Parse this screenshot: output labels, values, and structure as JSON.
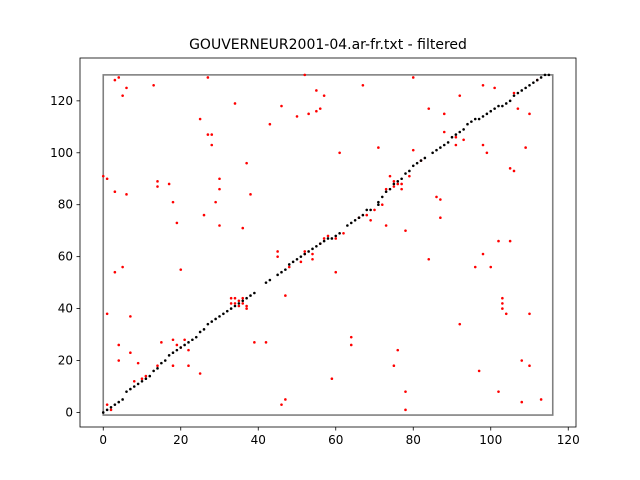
{
  "chart_data": {
    "type": "scatter",
    "title": "GOUVERNEUR2001-04.ar-fr.txt - filtered",
    "xlabel": "",
    "ylabel": "",
    "xlim": [
      -6.0,
      122.0
    ],
    "ylim": [
      -5.6,
      136.5
    ],
    "xticks": [
      0,
      20,
      40,
      60,
      80,
      100,
      120
    ],
    "yticks": [
      0,
      20,
      40,
      60,
      80,
      100,
      120
    ],
    "grid": false,
    "box": {
      "x0": 0,
      "y0": -1,
      "x1": 116,
      "y1": 130,
      "color": "#808080"
    },
    "series": [
      {
        "name": "",
        "color": "#000000",
        "points": [
          [
            0,
            0
          ],
          [
            1,
            1
          ],
          [
            2,
            2
          ],
          [
            3,
            3
          ],
          [
            4,
            4
          ],
          [
            5,
            5
          ],
          [
            6,
            8
          ],
          [
            7,
            9
          ],
          [
            8,
            10
          ],
          [
            9,
            11
          ],
          [
            10,
            12
          ],
          [
            11,
            13
          ],
          [
            12,
            14
          ],
          [
            13,
            16
          ],
          [
            14,
            17
          ],
          [
            15,
            19
          ],
          [
            16,
            20
          ],
          [
            17,
            22
          ],
          [
            18,
            23
          ],
          [
            19,
            24
          ],
          [
            20,
            25
          ],
          [
            21,
            26
          ],
          [
            22,
            27
          ],
          [
            23,
            28
          ],
          [
            24,
            29
          ],
          [
            25,
            31
          ],
          [
            26,
            32
          ],
          [
            27,
            34
          ],
          [
            28,
            35
          ],
          [
            29,
            36
          ],
          [
            30,
            37
          ],
          [
            31,
            38
          ],
          [
            32,
            39
          ],
          [
            33,
            40
          ],
          [
            34,
            41
          ],
          [
            35,
            42
          ],
          [
            36,
            43
          ],
          [
            37,
            44
          ],
          [
            38,
            45
          ],
          [
            39,
            46
          ],
          [
            42,
            50
          ],
          [
            43,
            51
          ],
          [
            45,
            53
          ],
          [
            46,
            54
          ],
          [
            47,
            55
          ],
          [
            48,
            57
          ],
          [
            49,
            58
          ],
          [
            50,
            59
          ],
          [
            51,
            60
          ],
          [
            52,
            61
          ],
          [
            53,
            62
          ],
          [
            54,
            63
          ],
          [
            55,
            64
          ],
          [
            56,
            65
          ],
          [
            57,
            66
          ],
          [
            58,
            67
          ],
          [
            59,
            67
          ],
          [
            60,
            68
          ],
          [
            61,
            69
          ],
          [
            63,
            72
          ],
          [
            64,
            73
          ],
          [
            65,
            74
          ],
          [
            66,
            75
          ],
          [
            67,
            76
          ],
          [
            68,
            78
          ],
          [
            69,
            78
          ],
          [
            71,
            80
          ],
          [
            71,
            81
          ],
          [
            72,
            83
          ],
          [
            73,
            85
          ],
          [
            74,
            86
          ],
          [
            75,
            88
          ],
          [
            76,
            89
          ],
          [
            77,
            90
          ],
          [
            78,
            92
          ],
          [
            79,
            93
          ],
          [
            80,
            95
          ],
          [
            81,
            96
          ],
          [
            82,
            97
          ],
          [
            83,
            98
          ],
          [
            85,
            100
          ],
          [
            86,
            101
          ],
          [
            87,
            102
          ],
          [
            88,
            103
          ],
          [
            89,
            104
          ],
          [
            90,
            106
          ],
          [
            91,
            107
          ],
          [
            92,
            108
          ],
          [
            93,
            109
          ],
          [
            94,
            111
          ],
          [
            95,
            112
          ],
          [
            96,
            113
          ],
          [
            97,
            113
          ],
          [
            98,
            114
          ],
          [
            99,
            115
          ],
          [
            100,
            116
          ],
          [
            101,
            117
          ],
          [
            102,
            118
          ],
          [
            103,
            118
          ],
          [
            104,
            119
          ],
          [
            105,
            120
          ],
          [
            106,
            122
          ],
          [
            107,
            123
          ],
          [
            108,
            124
          ],
          [
            109,
            125
          ],
          [
            110,
            126
          ],
          [
            111,
            127
          ],
          [
            112,
            128
          ],
          [
            113,
            129
          ],
          [
            114,
            130
          ],
          [
            115,
            130
          ]
        ]
      },
      {
        "name": "",
        "color": "#ff0000",
        "points": [
          [
            0,
            91
          ],
          [
            1,
            90
          ],
          [
            1,
            38
          ],
          [
            1,
            3
          ],
          [
            2,
            1
          ],
          [
            3,
            85
          ],
          [
            3,
            128
          ],
          [
            3,
            54
          ],
          [
            4,
            129
          ],
          [
            4,
            26
          ],
          [
            4,
            20
          ],
          [
            5,
            122
          ],
          [
            5,
            56
          ],
          [
            6,
            125
          ],
          [
            6,
            84
          ],
          [
            7,
            37
          ],
          [
            7,
            23
          ],
          [
            8,
            12
          ],
          [
            9,
            19
          ],
          [
            10,
            13
          ],
          [
            11,
            14
          ],
          [
            13,
            126
          ],
          [
            14,
            89
          ],
          [
            14,
            87
          ],
          [
            14,
            18
          ],
          [
            15,
            27
          ],
          [
            17,
            88
          ],
          [
            18,
            81
          ],
          [
            18,
            28
          ],
          [
            18,
            18
          ],
          [
            19,
            73
          ],
          [
            19,
            26
          ],
          [
            20,
            55
          ],
          [
            20,
            25
          ],
          [
            21,
            28
          ],
          [
            22,
            24
          ],
          [
            22,
            18
          ],
          [
            25,
            113
          ],
          [
            25,
            15
          ],
          [
            26,
            76
          ],
          [
            27,
            129
          ],
          [
            27,
            107
          ],
          [
            28,
            107
          ],
          [
            28,
            103
          ],
          [
            29,
            81
          ],
          [
            30,
            90
          ],
          [
            30,
            86
          ],
          [
            30,
            72
          ],
          [
            33,
            44
          ],
          [
            33,
            42
          ],
          [
            34,
            44
          ],
          [
            34,
            42
          ],
          [
            34,
            119
          ],
          [
            35,
            43
          ],
          [
            35,
            41
          ],
          [
            36,
            44
          ],
          [
            36,
            71
          ],
          [
            36,
            42
          ],
          [
            37,
            41
          ],
          [
            37,
            96
          ],
          [
            37,
            40
          ],
          [
            38,
            84
          ],
          [
            39,
            27
          ],
          [
            42,
            27
          ],
          [
            43,
            111
          ],
          [
            45,
            62
          ],
          [
            45,
            60
          ],
          [
            46,
            118
          ],
          [
            46,
            3
          ],
          [
            47,
            45
          ],
          [
            47,
            5
          ],
          [
            48,
            56
          ],
          [
            50,
            114
          ],
          [
            51,
            58
          ],
          [
            52,
            62
          ],
          [
            52,
            61
          ],
          [
            52,
            130
          ],
          [
            53,
            115
          ],
          [
            54,
            61
          ],
          [
            54,
            59
          ],
          [
            55,
            124
          ],
          [
            55,
            116
          ],
          [
            56,
            117
          ],
          [
            56,
            65
          ],
          [
            57,
            122
          ],
          [
            57,
            67
          ],
          [
            58,
            68
          ],
          [
            59,
            13
          ],
          [
            60,
            67
          ],
          [
            60,
            54
          ],
          [
            61,
            100
          ],
          [
            62,
            69
          ],
          [
            64,
            29
          ],
          [
            64,
            26
          ],
          [
            66,
            75
          ],
          [
            67,
            126
          ],
          [
            68,
            76
          ],
          [
            69,
            74
          ],
          [
            70,
            78
          ],
          [
            71,
            102
          ],
          [
            72,
            80
          ],
          [
            73,
            86
          ],
          [
            73,
            72
          ],
          [
            74,
            91
          ],
          [
            75,
            89
          ],
          [
            75,
            87
          ],
          [
            75,
            18
          ],
          [
            76,
            88
          ],
          [
            76,
            24
          ],
          [
            77,
            86
          ],
          [
            77,
            88
          ],
          [
            78,
            8
          ],
          [
            78,
            70
          ],
          [
            78,
            1
          ],
          [
            79,
            91
          ],
          [
            80,
            129
          ],
          [
            80,
            101
          ],
          [
            82,
            97
          ],
          [
            84,
            117
          ],
          [
            84,
            59
          ],
          [
            86,
            83
          ],
          [
            87,
            82
          ],
          [
            87,
            75
          ],
          [
            88,
            108
          ],
          [
            88,
            115
          ],
          [
            91,
            106
          ],
          [
            91,
            103
          ],
          [
            92,
            122
          ],
          [
            92,
            34
          ],
          [
            93,
            105
          ],
          [
            96,
            56
          ],
          [
            97,
            16
          ],
          [
            98,
            126
          ],
          [
            98,
            103
          ],
          [
            98,
            61
          ],
          [
            99,
            100
          ],
          [
            100,
            56
          ],
          [
            101,
            125
          ],
          [
            102,
            66
          ],
          [
            102,
            8
          ],
          [
            103,
            44
          ],
          [
            103,
            42
          ],
          [
            103,
            40
          ],
          [
            104,
            38
          ],
          [
            105,
            66
          ],
          [
            105,
            94
          ],
          [
            106,
            123
          ],
          [
            106,
            93
          ],
          [
            107,
            117
          ],
          [
            108,
            20
          ],
          [
            108,
            4
          ],
          [
            109,
            102
          ],
          [
            110,
            115
          ],
          [
            110,
            38
          ],
          [
            110,
            18
          ],
          [
            112,
            128
          ],
          [
            113,
            5
          ]
        ]
      }
    ]
  }
}
